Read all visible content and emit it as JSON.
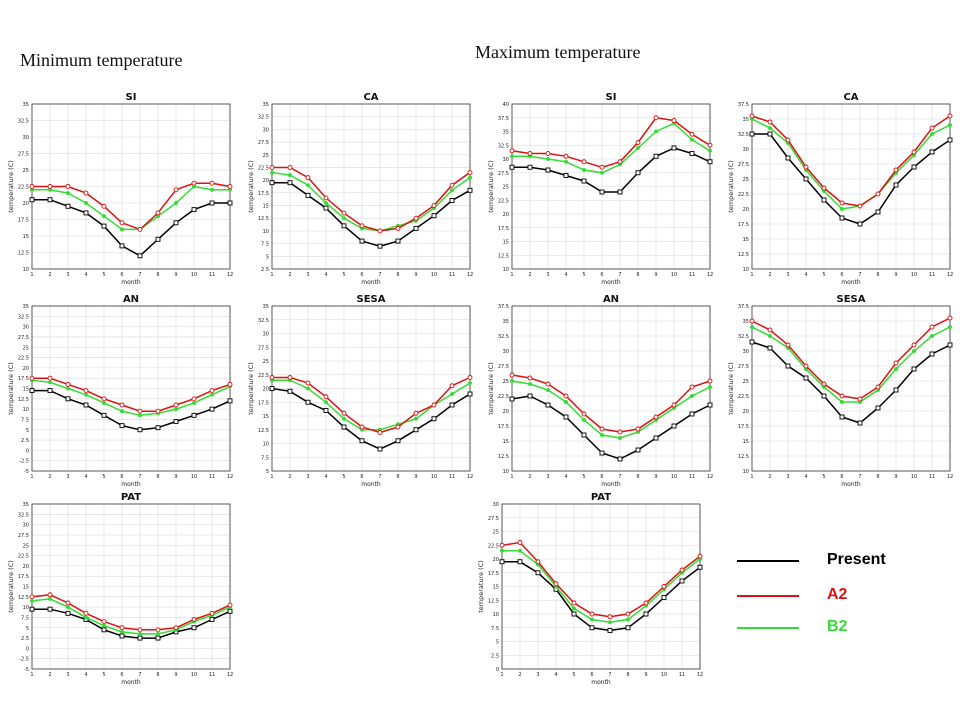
{
  "section_titles": {
    "minimum": "Minimum temperature",
    "maximum": "Maximum temperature"
  },
  "legend": [
    {
      "label": "Present",
      "color": "#000000"
    },
    {
      "label": "A2",
      "color": "#dd1111"
    },
    {
      "label": "B2",
      "color": "#33dd33"
    }
  ],
  "chart_data": [
    {
      "type": "line",
      "title": "SI",
      "group": "Minimum temperature",
      "xlabel": "month",
      "ylabel": "temperature (C)",
      "x": [
        1,
        2,
        3,
        4,
        5,
        6,
        7,
        8,
        9,
        10,
        11,
        12
      ],
      "ylim": [
        10,
        35
      ],
      "yticks": [
        "10",
        "12.5",
        "15",
        "17.5",
        "20",
        "22.5",
        "25",
        "27.5",
        "30",
        "32.5",
        "35"
      ],
      "series": [
        {
          "name": "Present",
          "values": [
            20.5,
            20.5,
            19.5,
            18.5,
            16.5,
            13.5,
            12.0,
            14.5,
            17.0,
            19.0,
            20.0,
            20.0
          ]
        },
        {
          "name": "A2",
          "values": [
            22.5,
            22.5,
            22.5,
            21.5,
            19.5,
            17.0,
            16.0,
            18.5,
            22.0,
            23.0,
            23.0,
            22.5
          ]
        },
        {
          "name": "B2",
          "values": [
            22.0,
            22.0,
            21.5,
            20.0,
            18.0,
            16.0,
            16.0,
            18.0,
            20.0,
            22.5,
            22.0,
            22.0
          ]
        }
      ]
    },
    {
      "type": "line",
      "title": "CA",
      "group": "Minimum temperature",
      "xlabel": "month",
      "ylabel": "temperature (C)",
      "x": [
        1,
        2,
        3,
        4,
        5,
        6,
        7,
        8,
        9,
        10,
        11,
        12
      ],
      "ylim": [
        2.5,
        35
      ],
      "yticks": [
        "2.5",
        "5",
        "7.5",
        "10",
        "12.5",
        "15",
        "17.5",
        "20",
        "22.5",
        "25",
        "27.5",
        "30",
        "32.5",
        "35"
      ],
      "series": [
        {
          "name": "Present",
          "values": [
            19.5,
            19.5,
            17.0,
            14.5,
            11.0,
            8.0,
            7.0,
            8.0,
            10.5,
            13.0,
            16.0,
            18.0
          ]
        },
        {
          "name": "A2",
          "values": [
            22.5,
            22.5,
            20.5,
            16.5,
            13.5,
            11.0,
            10.0,
            10.5,
            12.5,
            15.0,
            19.0,
            21.5
          ]
        },
        {
          "name": "B2",
          "values": [
            21.5,
            21.0,
            19.0,
            15.5,
            12.5,
            10.5,
            10.0,
            11.0,
            12.0,
            14.5,
            18.0,
            20.5
          ]
        }
      ]
    },
    {
      "type": "line",
      "title": "SI",
      "group": "Maximum temperature",
      "xlabel": "month",
      "ylabel": "temperature (C)",
      "x": [
        1,
        2,
        3,
        4,
        5,
        6,
        7,
        8,
        9,
        10,
        11,
        12
      ],
      "ylim": [
        10,
        40
      ],
      "yticks": [
        "10",
        "12.5",
        "15",
        "17.5",
        "20",
        "22.5",
        "25",
        "27.5",
        "30",
        "32.5",
        "35",
        "37.5",
        "40"
      ],
      "series": [
        {
          "name": "Present",
          "values": [
            28.5,
            28.5,
            28.0,
            27.0,
            26.0,
            24.0,
            24.0,
            27.5,
            30.5,
            32.0,
            31.0,
            29.5
          ]
        },
        {
          "name": "A2",
          "values": [
            31.5,
            31.0,
            31.0,
            30.5,
            29.5,
            28.5,
            29.5,
            33.0,
            37.5,
            37.0,
            34.5,
            32.5
          ]
        },
        {
          "name": "B2",
          "values": [
            30.5,
            30.5,
            30.0,
            29.5,
            28.0,
            27.5,
            29.0,
            32.0,
            35.0,
            36.5,
            33.5,
            31.5
          ]
        }
      ]
    },
    {
      "type": "line",
      "title": "CA",
      "group": "Maximum temperature",
      "xlabel": "month",
      "ylabel": "temperature (C)",
      "x": [
        1,
        2,
        3,
        4,
        5,
        6,
        7,
        8,
        9,
        10,
        11,
        12
      ],
      "ylim": [
        10,
        37.5
      ],
      "yticks": [
        "10",
        "12.5",
        "15",
        "17.5",
        "20",
        "22.5",
        "25",
        "27.5",
        "30",
        "32.5",
        "35",
        "37.5"
      ],
      "series": [
        {
          "name": "Present",
          "values": [
            32.5,
            32.5,
            28.5,
            25.0,
            21.5,
            18.5,
            17.5,
            19.5,
            24.0,
            27.0,
            29.5,
            31.5
          ]
        },
        {
          "name": "A2",
          "values": [
            35.5,
            34.5,
            31.5,
            27.0,
            23.5,
            21.0,
            20.5,
            22.5,
            26.5,
            29.5,
            33.5,
            35.5
          ]
        },
        {
          "name": "B2",
          "values": [
            35.0,
            33.5,
            31.0,
            26.5,
            23.0,
            20.0,
            20.5,
            22.5,
            26.0,
            29.0,
            32.5,
            34.0
          ]
        }
      ]
    },
    {
      "type": "line",
      "title": "AN",
      "group": "Minimum temperature",
      "xlabel": "month",
      "ylabel": "temperature (C)",
      "x": [
        1,
        2,
        3,
        4,
        5,
        6,
        7,
        8,
        9,
        10,
        11,
        12
      ],
      "ylim": [
        -5,
        35
      ],
      "yticks": [
        "-5",
        "-2.5",
        "0",
        "2.5",
        "5",
        "7.5",
        "10",
        "12.5",
        "15",
        "17.5",
        "20",
        "22.5",
        "25",
        "27.5",
        "30",
        "32.5",
        "35"
      ],
      "series": [
        {
          "name": "Present",
          "values": [
            14.5,
            14.5,
            12.5,
            11.0,
            8.5,
            6.0,
            5.0,
            5.5,
            7.0,
            8.5,
            10.0,
            12.0
          ]
        },
        {
          "name": "A2",
          "values": [
            17.5,
            17.5,
            16.0,
            14.5,
            12.5,
            11.0,
            9.5,
            9.5,
            11.0,
            12.5,
            14.5,
            16.0
          ]
        },
        {
          "name": "B2",
          "values": [
            17.0,
            16.5,
            15.0,
            13.5,
            11.5,
            9.5,
            8.5,
            9.0,
            10.0,
            11.5,
            13.5,
            15.5
          ]
        }
      ]
    },
    {
      "type": "line",
      "title": "SESA",
      "group": "Minimum temperature",
      "xlabel": "month",
      "ylabel": "temperature (C)",
      "x": [
        1,
        2,
        3,
        4,
        5,
        6,
        7,
        8,
        9,
        10,
        11,
        12
      ],
      "ylim": [
        5,
        35
      ],
      "yticks": [
        "5",
        "7.5",
        "10",
        "12.5",
        "15",
        "17.5",
        "20",
        "22.5",
        "25",
        "27.5",
        "30",
        "32.5",
        "35"
      ],
      "series": [
        {
          "name": "Present",
          "values": [
            20.0,
            19.5,
            17.5,
            16.0,
            13.0,
            10.5,
            9.0,
            10.5,
            12.5,
            14.5,
            17.0,
            19.0
          ]
        },
        {
          "name": "A2",
          "values": [
            22.0,
            22.0,
            21.0,
            18.5,
            15.5,
            13.0,
            12.0,
            13.0,
            15.5,
            17.0,
            20.5,
            22.0
          ]
        },
        {
          "name": "B2",
          "values": [
            21.5,
            21.5,
            20.0,
            17.5,
            14.5,
            12.5,
            12.5,
            13.5,
            14.5,
            17.0,
            19.0,
            21.0
          ]
        }
      ]
    },
    {
      "type": "line",
      "title": "AN",
      "group": "Maximum temperature",
      "xlabel": "month",
      "ylabel": "temperature (C)",
      "x": [
        1,
        2,
        3,
        4,
        5,
        6,
        7,
        8,
        9,
        10,
        11,
        12
      ],
      "ylim": [
        10,
        37.5
      ],
      "yticks": [
        "10",
        "12.5",
        "15",
        "17.5",
        "20",
        "22.5",
        "25",
        "27.5",
        "30",
        "32.5",
        "35",
        "37.5"
      ],
      "series": [
        {
          "name": "Present",
          "values": [
            22.0,
            22.5,
            21.0,
            19.0,
            16.0,
            13.0,
            12.0,
            13.5,
            15.5,
            17.5,
            19.5,
            21.0
          ]
        },
        {
          "name": "A2",
          "values": [
            26.0,
            25.5,
            24.5,
            22.5,
            19.5,
            17.0,
            16.5,
            17.0,
            19.0,
            21.0,
            24.0,
            25.0
          ]
        },
        {
          "name": "B2",
          "values": [
            25.0,
            24.5,
            23.5,
            21.5,
            18.5,
            16.0,
            15.5,
            16.5,
            18.5,
            20.5,
            22.5,
            24.0
          ]
        }
      ]
    },
    {
      "type": "line",
      "title": "SESA",
      "group": "Maximum temperature",
      "xlabel": "month",
      "ylabel": "temperature (C)",
      "x": [
        1,
        2,
        3,
        4,
        5,
        6,
        7,
        8,
        9,
        10,
        11,
        12
      ],
      "ylim": [
        10,
        37.5
      ],
      "yticks": [
        "10",
        "12.5",
        "15",
        "17.5",
        "20",
        "22.5",
        "25",
        "27.5",
        "30",
        "32.5",
        "35",
        "37.5"
      ],
      "series": [
        {
          "name": "Present",
          "values": [
            31.5,
            30.5,
            27.5,
            25.5,
            22.5,
            19.0,
            18.0,
            20.5,
            23.5,
            27.0,
            29.5,
            31.0
          ]
        },
        {
          "name": "A2",
          "values": [
            35.0,
            33.5,
            31.0,
            27.5,
            24.5,
            22.5,
            22.0,
            24.0,
            28.0,
            31.0,
            34.0,
            35.5
          ]
        },
        {
          "name": "B2",
          "values": [
            34.0,
            32.5,
            30.5,
            27.0,
            24.0,
            21.5,
            21.5,
            23.5,
            27.0,
            30.0,
            32.5,
            34.0
          ]
        }
      ]
    },
    {
      "type": "line",
      "title": "PAT",
      "group": "Minimum temperature",
      "xlabel": "month",
      "ylabel": "temperature (C)",
      "x": [
        1,
        2,
        3,
        4,
        5,
        6,
        7,
        8,
        9,
        10,
        11,
        12
      ],
      "ylim": [
        -5,
        35
      ],
      "yticks": [
        "-5",
        "-2.5",
        "0",
        "2.5",
        "5",
        "7.5",
        "10",
        "12.5",
        "15",
        "17.5",
        "20",
        "22.5",
        "25",
        "27.5",
        "30",
        "32.5",
        "35"
      ],
      "series": [
        {
          "name": "Present",
          "values": [
            9.5,
            9.5,
            8.5,
            7.0,
            4.5,
            3.0,
            2.5,
            2.5,
            4.0,
            5.0,
            7.0,
            9.0
          ]
        },
        {
          "name": "A2",
          "values": [
            12.5,
            13.0,
            11.0,
            8.5,
            6.5,
            5.0,
            4.5,
            4.5,
            5.0,
            7.0,
            8.5,
            10.5
          ]
        },
        {
          "name": "B2",
          "values": [
            11.5,
            12.0,
            10.0,
            7.5,
            5.5,
            4.0,
            3.5,
            3.5,
            4.5,
            6.5,
            8.0,
            10.0
          ]
        }
      ]
    },
    {
      "type": "line",
      "title": "PAT",
      "group": "Maximum temperature",
      "xlabel": "month",
      "ylabel": "temperature (C)",
      "x": [
        1,
        2,
        3,
        4,
        5,
        6,
        7,
        8,
        9,
        10,
        11,
        12
      ],
      "ylim": [
        0,
        30
      ],
      "yticks": [
        "0",
        "2.5",
        "5",
        "7.5",
        "10",
        "12.5",
        "15",
        "17.5",
        "20",
        "22.5",
        "25",
        "27.5",
        "30"
      ],
      "series": [
        {
          "name": "Present",
          "values": [
            19.5,
            19.5,
            17.5,
            14.5,
            10.0,
            7.5,
            7.0,
            7.5,
            10.0,
            13.0,
            16.0,
            18.5
          ]
        },
        {
          "name": "A2",
          "values": [
            22.5,
            23.0,
            19.5,
            15.5,
            12.0,
            10.0,
            9.5,
            10.0,
            12.0,
            15.0,
            18.0,
            20.5
          ]
        },
        {
          "name": "B2",
          "values": [
            21.5,
            21.5,
            19.0,
            15.0,
            11.0,
            9.0,
            8.5,
            9.0,
            11.5,
            14.5,
            17.5,
            20.0
          ]
        }
      ]
    }
  ]
}
